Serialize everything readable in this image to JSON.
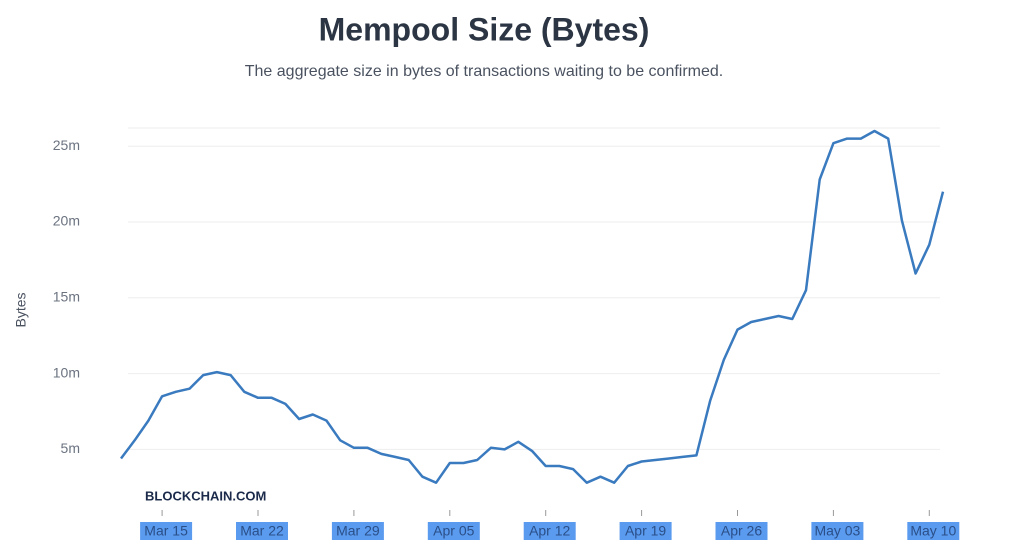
{
  "chart_data": {
    "type": "line",
    "title": "Mempool Size (Bytes)",
    "subtitle": "The aggregate size in bytes of transactions waiting to be confirmed.",
    "y_label": "Bytes",
    "watermark": "BLOCKCHAIN.COM",
    "x": [
      "Mar 12",
      "Mar 13",
      "Mar 14",
      "Mar 15",
      "Mar 16",
      "Mar 17",
      "Mar 18",
      "Mar 19",
      "Mar 20",
      "Mar 21",
      "Mar 22",
      "Mar 23",
      "Mar 24",
      "Mar 25",
      "Mar 26",
      "Mar 27",
      "Mar 28",
      "Mar 29",
      "Mar 30",
      "Mar 31",
      "Apr 01",
      "Apr 02",
      "Apr 03",
      "Apr 04",
      "Apr 05",
      "Apr 06",
      "Apr 07",
      "Apr 08",
      "Apr 09",
      "Apr 10",
      "Apr 11",
      "Apr 12",
      "Apr 13",
      "Apr 14",
      "Apr 15",
      "Apr 16",
      "Apr 17",
      "Apr 18",
      "Apr 19",
      "Apr 20",
      "Apr 21",
      "Apr 22",
      "Apr 23",
      "Apr 24",
      "Apr 25",
      "Apr 26",
      "Apr 27",
      "Apr 28",
      "Apr 29",
      "Apr 30",
      "May 01",
      "May 02",
      "May 03",
      "May 04",
      "May 05",
      "May 06",
      "May 07",
      "May 08",
      "May 09",
      "May 10",
      "May 11"
    ],
    "series": [
      {
        "name": "Mempool Size",
        "color": "#3a7abf",
        "values": [
          4400000,
          5600000,
          6900000,
          8500000,
          8800000,
          9000000,
          9900000,
          10100000,
          9900000,
          8800000,
          8400000,
          8400000,
          8000000,
          7000000,
          7300000,
          6900000,
          5600000,
          5100000,
          5100000,
          4700000,
          4500000,
          4300000,
          3200000,
          2800000,
          4100000,
          4100000,
          4300000,
          5100000,
          5000000,
          5500000,
          4900000,
          3900000,
          3900000,
          3700000,
          2800000,
          3200000,
          2800000,
          3900000,
          4200000,
          4300000,
          4400000,
          4500000,
          4600000,
          8200000,
          10900000,
          12900000,
          13400000,
          13600000,
          13800000,
          13600000,
          15500000,
          22800000,
          25200000,
          25500000,
          25500000,
          26000000,
          25500000,
          20100000,
          16600000,
          18500000,
          22000000
        ]
      }
    ],
    "xticks": [
      "Mar 15",
      "Mar 22",
      "Mar 29",
      "Apr 05",
      "Apr 12",
      "Apr 19",
      "Apr 26",
      "May 03",
      "May 10"
    ],
    "ylim": [
      1000000,
      26200000
    ],
    "yticks": [
      {
        "value": 5000000,
        "label": "5m"
      },
      {
        "value": 10000000,
        "label": "10m"
      },
      {
        "value": 15000000,
        "label": "15m"
      },
      {
        "value": 20000000,
        "label": "20m"
      },
      {
        "value": 25000000,
        "label": "25m"
      }
    ],
    "grid": true
  }
}
